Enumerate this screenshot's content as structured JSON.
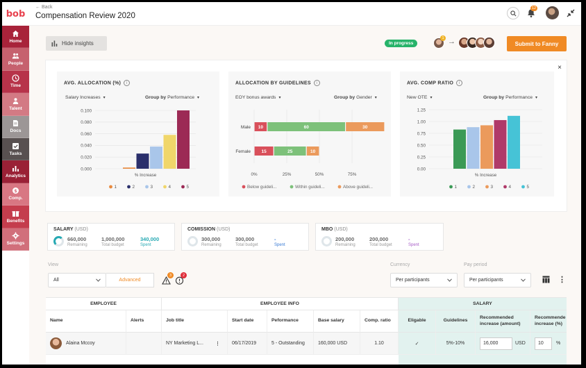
{
  "colors": {
    "accent": "#f08a24",
    "brand": "#e8424f",
    "success": "#27b36a"
  },
  "sidebar": {
    "logo": "bob",
    "items": [
      {
        "label": "Home",
        "icon": "home-icon",
        "color": "#a8233a"
      },
      {
        "label": "People",
        "icon": "people-icon",
        "color": "#c6616e"
      },
      {
        "label": "Time",
        "icon": "clock-icon",
        "color": "#b7334a"
      },
      {
        "label": "Talent",
        "icon": "talent-icon",
        "color": "#d37a84"
      },
      {
        "label": "Docs",
        "icon": "docs-icon",
        "color": "#9c9696"
      },
      {
        "label": "Tasks",
        "icon": "tasks-icon",
        "color": "#585050"
      },
      {
        "label": "Analytics",
        "icon": "analytics-icon",
        "color": "#9a2136"
      },
      {
        "label": "Comp.",
        "icon": "comp-icon",
        "color": "#d87783"
      },
      {
        "label": "Benefits",
        "icon": "benefits-icon",
        "color": "#c43d4d"
      },
      {
        "label": "Settings",
        "icon": "gear-icon",
        "color": "#d16f7b"
      }
    ]
  },
  "header": {
    "back": "Back",
    "title": "Compensation Review 2020",
    "notifications": "12"
  },
  "toolbar": {
    "hide_insights": "Hide insights",
    "status": "In progress",
    "approver_badge": "1",
    "submit": "Submit to Fanny"
  },
  "insights": {
    "close": "×",
    "cards": [
      {
        "title": "AVG. ALLOCATION (%)",
        "selector": "Salary Increases",
        "group_label": "Group by",
        "group_value": "Performance",
        "chart_data": {
          "type": "bar",
          "title": "AVG. ALLOCATION (%)",
          "xlabel": "% Increase",
          "yticks": [
            "0.000",
            "0.020",
            "0.040",
            "0.060",
            "0.080",
            "0.100"
          ],
          "ylim": [
            0,
            0.1
          ],
          "categories": [
            "1",
            "2",
            "3",
            "4",
            "5"
          ],
          "values": [
            0.002,
            0.026,
            0.038,
            0.058,
            0.1
          ],
          "colors": [
            "#e88a3f",
            "#2a2f6b",
            "#a9c6ea",
            "#f0d66a",
            "#9c2a55"
          ]
        }
      },
      {
        "title": "ALLOCATION BY GUIDELINES",
        "selector": "EOY bonus awards",
        "group_label": "Group by",
        "group_value": "Gender",
        "chart_data": {
          "type": "bar",
          "orientation": "horizontal-stacked",
          "title": "ALLOCATION BY GUIDELINES",
          "categories": [
            "Male",
            "Female"
          ],
          "xticks": [
            "0%",
            "25%",
            "50%",
            "75%"
          ],
          "series": [
            {
              "name": "Below guideli...",
              "values": [
                10,
                15
              ],
              "color": "#d9505b"
            },
            {
              "name": "Within guideli...",
              "values": [
                60,
                25
              ],
              "color": "#7dc17a"
            },
            {
              "name": "Above guideli...",
              "values": [
                30,
                10
              ],
              "color": "#eb9a5c"
            }
          ]
        }
      },
      {
        "title": "AVG. COMP RATIO",
        "selector": "New OTE",
        "group_label": "Group by",
        "group_value": "Performance",
        "chart_data": {
          "type": "bar",
          "title": "AVG. COMP RATIO",
          "xlabel": "% Increase",
          "yticks": [
            "0.00",
            "0.25",
            "0.50",
            "0.75",
            "1.00",
            "1.25"
          ],
          "ylim": [
            0,
            1.25
          ],
          "categories": [
            "1",
            "2",
            "3",
            "4",
            "5"
          ],
          "values": [
            0.83,
            0.88,
            0.92,
            1.03,
            1.12
          ],
          "colors": [
            "#3b9a56",
            "#a9c6ea",
            "#eb9a5c",
            "#b03a69",
            "#46c3d6"
          ]
        }
      }
    ]
  },
  "budgets": [
    {
      "title": "SALARY",
      "unit": "(USD)",
      "remaining": "660,000",
      "remaining_label": "Remaining",
      "total": "1,000,000",
      "total_label": "Total budget",
      "spent": "340,000",
      "spent_label": "Spent",
      "spent_color": "#26a9b3"
    },
    {
      "title": "COMISSION",
      "unit": "(USD)",
      "remaining": "300,000",
      "remaining_label": "Remaining",
      "total": "300,000",
      "total_label": "Total budget",
      "spent": "-",
      "spent_label": "Spent",
      "spent_color": "#3a7bd5"
    },
    {
      "title": "MBO",
      "unit": "(USD)",
      "remaining": "200,000",
      "remaining_label": "Remaining",
      "total": "200,000",
      "total_label": "Total budget",
      "spent": "-",
      "spent_label": "Spent",
      "spent_color": "#a75cc7"
    }
  ],
  "filters": {
    "view_label": "View",
    "view_value": "All",
    "advanced": "Advanced",
    "warning_badge": "3",
    "error_badge": "2",
    "currency_label": "Currency",
    "currency_value": "Per participants",
    "pay_period_label": "Pay period",
    "pay_period_value": "Per participants"
  },
  "table": {
    "groups": {
      "employee": "EMPLOYEE",
      "info": "EMPLOYEE INFO",
      "salary": "SALARY"
    },
    "headers": {
      "name": "Name",
      "alerts": "Alerts",
      "job": "Job title",
      "start": "Start date",
      "perf": "Peformance",
      "base": "Base salary",
      "ratio": "Comp. ratio",
      "eligible": "Eligable",
      "guidelines": "Guidelines",
      "rec_amount": "Recommended increase (amount)",
      "rec_pct": "Recommende increase (%)"
    },
    "rows": [
      {
        "name": "Alaina Mccoy",
        "alerts": "",
        "job": "NY Marketing L...",
        "start": "06/17/2019",
        "perf": "5 - Outstanding",
        "base": "160,000 USD",
        "ratio": "1.10",
        "eligible": "✓",
        "guidelines": "5%-10%",
        "rec_amount": "16,000",
        "rec_currency": "USD",
        "rec_pct": "10",
        "rec_pct_unit": "%"
      }
    ]
  }
}
